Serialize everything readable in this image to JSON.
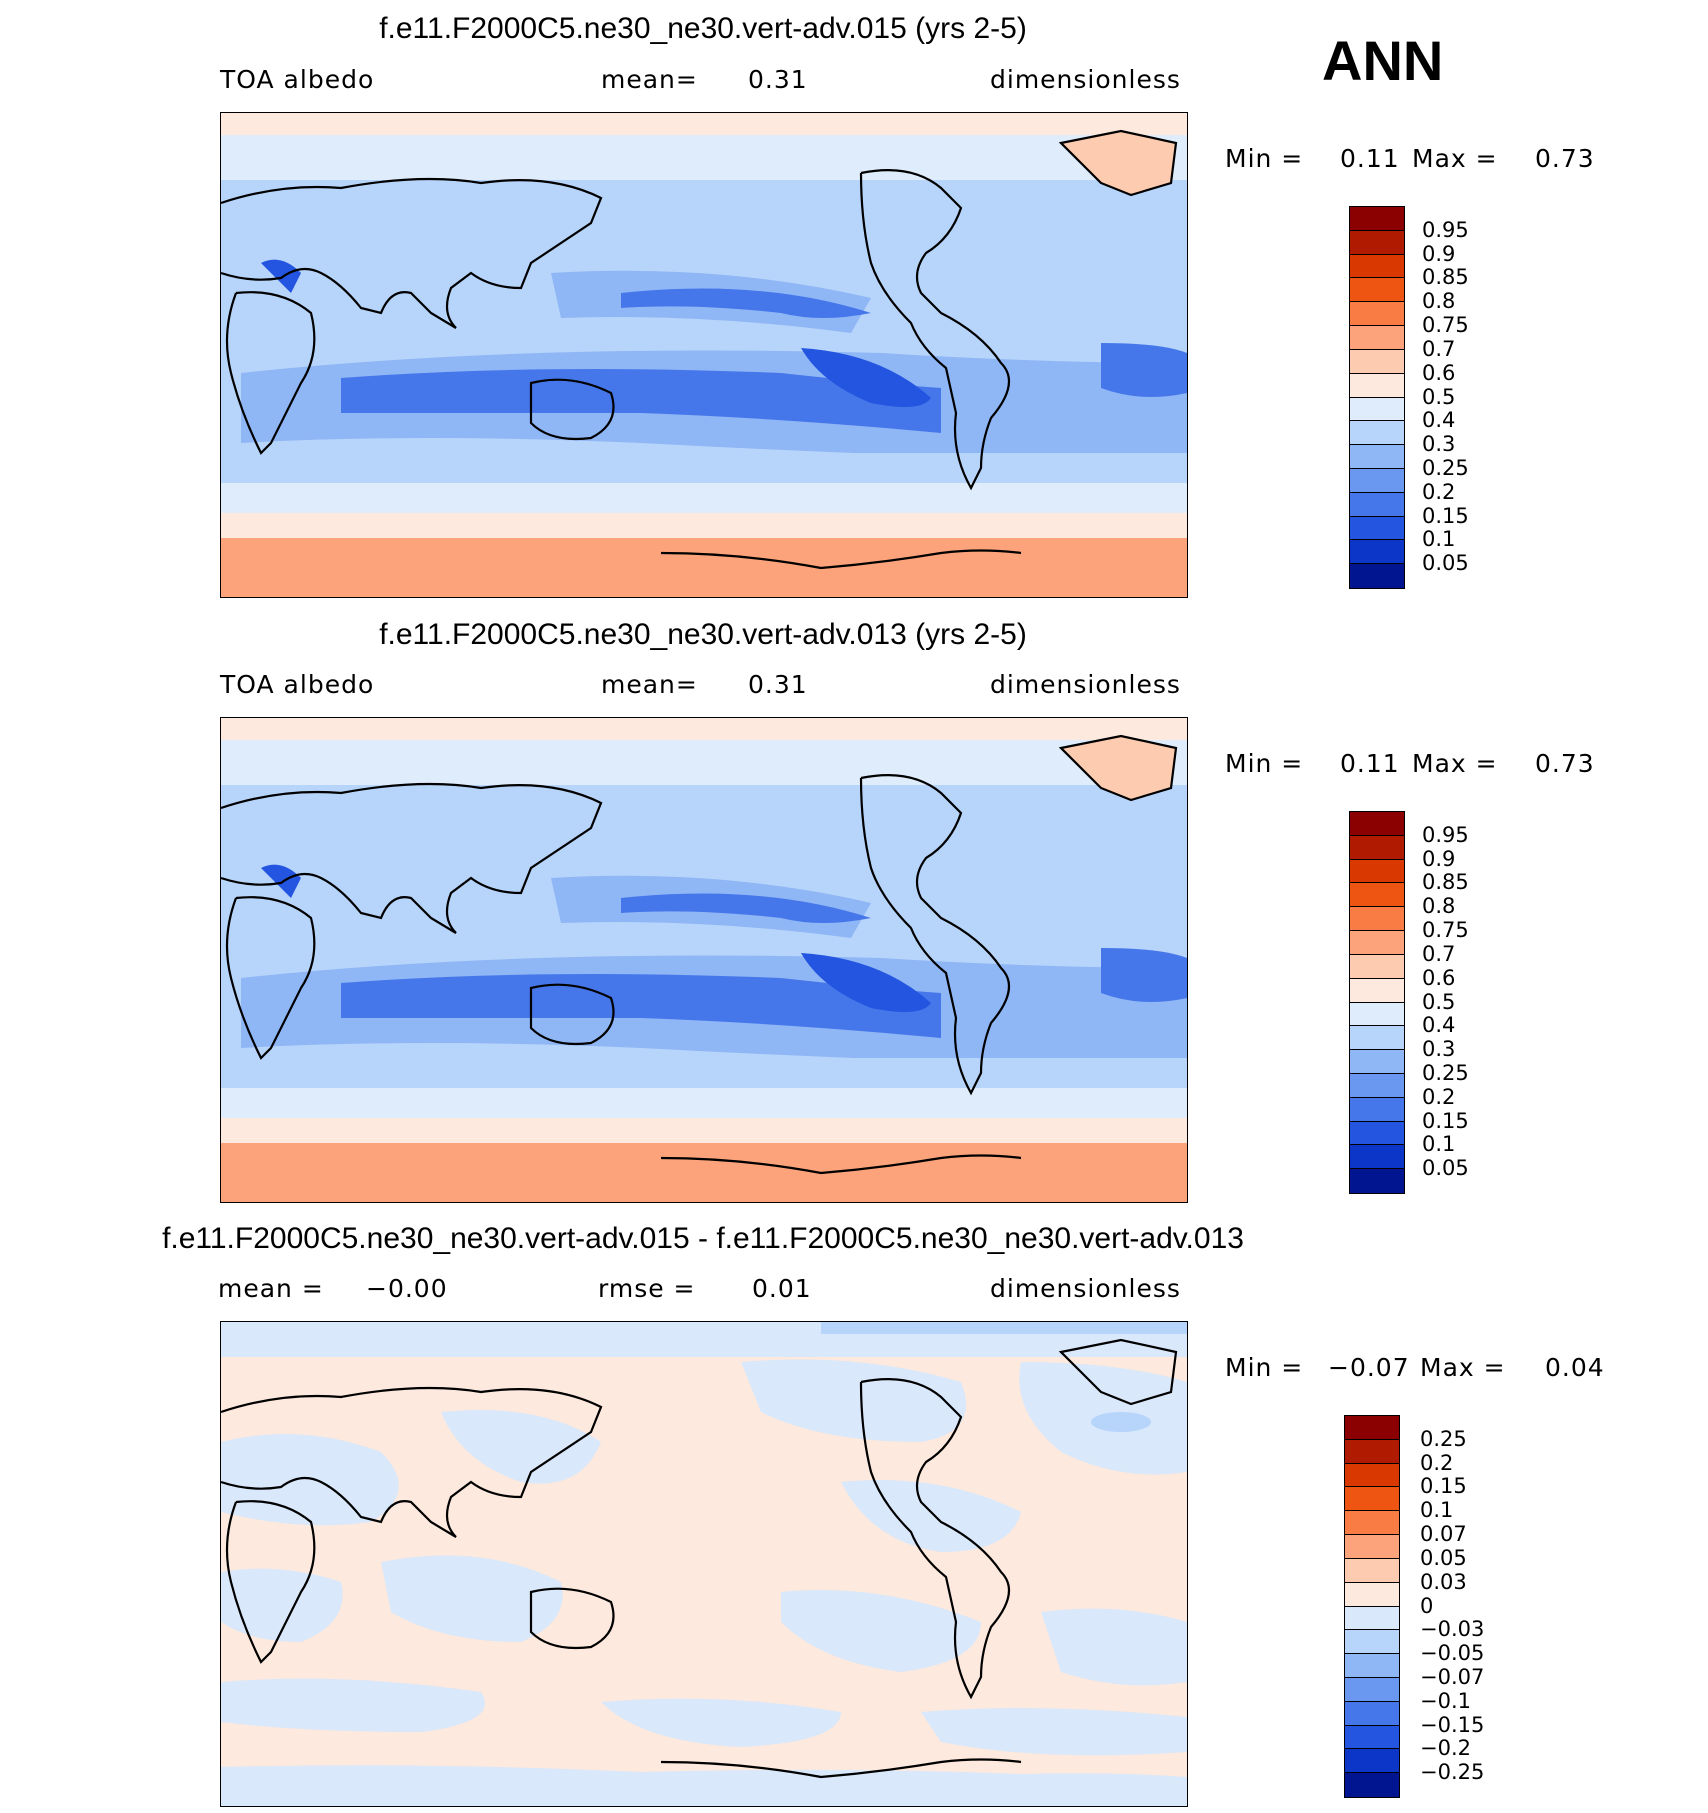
{
  "season": "ANN",
  "panels": [
    {
      "title": "f.e11.F2000C5.ne30_ne30.vert-adv.015 (yrs 2-5)",
      "left_label": "TOA albedo",
      "mid_label": "mean=",
      "mid_value": "0.31",
      "right_label": "dimensionless",
      "min_label": "Min =",
      "min_value": "0.11",
      "max_label": "Max =",
      "max_value": "0.73",
      "colorbar_labels": [
        "0.95",
        "0.9",
        "0.85",
        "0.8",
        "0.75",
        "0.7",
        "0.6",
        "0.5",
        "0.4",
        "0.3",
        "0.25",
        "0.2",
        "0.15",
        "0.1",
        "0.05"
      ],
      "colorbar_colors": [
        "#8b0000",
        "#b01a00",
        "#d93800",
        "#ee5412",
        "#fa7c45",
        "#fca37c",
        "#fdcbaf",
        "#fde9dd",
        "#deecfb",
        "#b7d4fa",
        "#8fb6f5",
        "#6a98f0",
        "#4677ea",
        "#2355e0",
        "#0b36c8",
        "#00158f"
      ]
    },
    {
      "title": "f.e11.F2000C5.ne30_ne30.vert-adv.013 (yrs 2-5)",
      "left_label": "TOA albedo",
      "mid_label": "mean=",
      "mid_value": "0.31",
      "right_label": "dimensionless",
      "min_label": "Min =",
      "min_value": "0.11",
      "max_label": "Max =",
      "max_value": "0.73",
      "colorbar_labels": [
        "0.95",
        "0.9",
        "0.85",
        "0.8",
        "0.75",
        "0.7",
        "0.6",
        "0.5",
        "0.4",
        "0.3",
        "0.25",
        "0.2",
        "0.15",
        "0.1",
        "0.05"
      ],
      "colorbar_colors": [
        "#8b0000",
        "#b01a00",
        "#d93800",
        "#ee5412",
        "#fa7c45",
        "#fca37c",
        "#fdcbaf",
        "#fde9dd",
        "#deecfb",
        "#b7d4fa",
        "#8fb6f5",
        "#6a98f0",
        "#4677ea",
        "#2355e0",
        "#0b36c8",
        "#00158f"
      ]
    },
    {
      "title": "f.e11.F2000C5.ne30_ne30.vert-adv.015 - f.e11.F2000C5.ne30_ne30.vert-adv.013",
      "left_label": "mean =",
      "left_value": "−0.00",
      "mid_label": "rmse =",
      "mid_value": "0.01",
      "right_label": "dimensionless",
      "min_label": "Min =",
      "min_value": "−0.07",
      "max_label": "Max =",
      "max_value": "0.04",
      "colorbar_labels": [
        "0.25",
        "0.2",
        "0.15",
        "0.1",
        "0.07",
        "0.05",
        "0.03",
        "0",
        "−0.03",
        "−0.05",
        "−0.07",
        "−0.1",
        "−0.15",
        "−0.2",
        "−0.25"
      ],
      "colorbar_colors": [
        "#8b0000",
        "#b01a00",
        "#d93800",
        "#ee5412",
        "#fa7c45",
        "#fca37c",
        "#fdcbaf",
        "#fde9dd",
        "#d9e8fa",
        "#b7d4fa",
        "#8fb6f5",
        "#6a98f0",
        "#4677ea",
        "#2355e0",
        "#0b36c8",
        "#00158f"
      ]
    }
  ]
}
